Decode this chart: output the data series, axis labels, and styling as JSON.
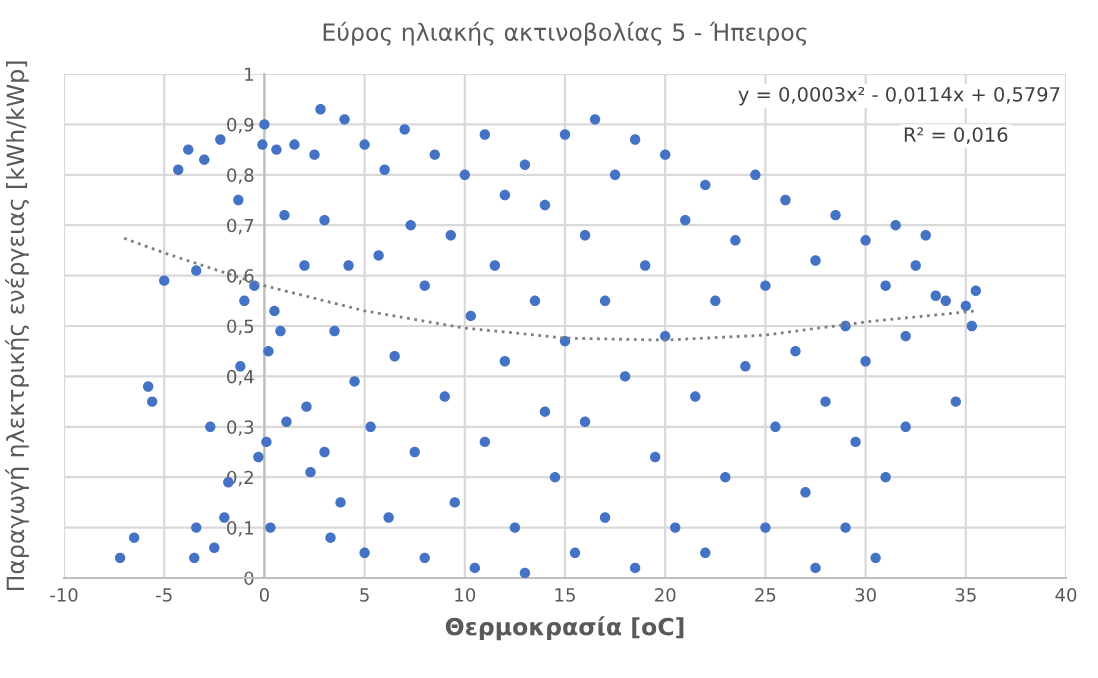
{
  "chart_data": {
    "type": "scatter",
    "title": "Εύρος ηλιακής ακτινοβολίας 5 - Ήπειρος",
    "xlabel": "Θερμοκρασία [oC]",
    "ylabel": "Παραγωγή ηλεκτρικής ενέργειας [kWh/kWp]",
    "annotations": [
      "y = 0,0003x² - 0,0114x + 0,5797",
      "R² = 0,016"
    ],
    "xlim": [
      -10,
      40
    ],
    "xticks": [
      -10,
      -5,
      0,
      5,
      10,
      15,
      20,
      25,
      30,
      35,
      40
    ],
    "ylim": [
      0,
      1
    ],
    "yticks": [
      0,
      {
        "value": 0.1,
        "label": "0,1"
      },
      {
        "value": 0.2,
        "label": "0,2"
      },
      {
        "value": 0.3,
        "label": "0,3"
      },
      {
        "value": 0.4,
        "label": "0,4"
      },
      {
        "value": 0.5,
        "label": "0,5"
      },
      {
        "value": 0.6,
        "label": "0,6"
      },
      {
        "value": 0.7,
        "label": "0,7"
      },
      {
        "value": 0.8,
        "label": "0,8"
      },
      {
        "value": 0.9,
        "label": "0,9"
      },
      1
    ],
    "grid": true,
    "series": [
      {
        "color": "#4472c4",
        "marker": "circle",
        "x": [
          -7.2,
          -6.5,
          -5.8,
          -5.6,
          -5,
          -4.3,
          -3.8,
          -3.5,
          -3.4,
          -3.4,
          -3,
          -2.5,
          -2.2,
          -2,
          -2.7,
          -1.8,
          -1.3,
          -1.2,
          -1,
          -0.1,
          0.1,
          -0.5,
          -0.3,
          0,
          0.2,
          0.3,
          0.5,
          0.6,
          0.8,
          1,
          1.1,
          1.5,
          2,
          2.1,
          2.3,
          2.5,
          2.8,
          3,
          3,
          3.3,
          3.5,
          3.8,
          4,
          4.2,
          4.5,
          5,
          5,
          5.3,
          5.7,
          6,
          6.2,
          6.5,
          7,
          7.3,
          7.5,
          8,
          8,
          8.5,
          9,
          9.3,
          9.5,
          10,
          10.3,
          10.5,
          11,
          11,
          11.5,
          12,
          12,
          12.5,
          13,
          13,
          13.5,
          14,
          14,
          14.5,
          15,
          15,
          15.5,
          16,
          16,
          16.5,
          17,
          17,
          17.5,
          18,
          18.5,
          18.5,
          19,
          19.5,
          20,
          20,
          20.5,
          21,
          21.5,
          22,
          22,
          22.5,
          23,
          23.5,
          24,
          24.5,
          25,
          25,
          25.5,
          26,
          26.5,
          27,
          27.5,
          27.5,
          28,
          28.5,
          29,
          29,
          29.5,
          30,
          30,
          30.5,
          31,
          31,
          31.5,
          32,
          32,
          32.5,
          33,
          33.5,
          34,
          34.5,
          35,
          35.3,
          35.5
        ],
        "values": [
          0.04,
          0.08,
          0.38,
          0.35,
          0.59,
          0.81,
          0.85,
          0.04,
          0.1,
          0.61,
          0.83,
          0.06,
          0.87,
          0.12,
          0.3,
          0.19,
          0.75,
          0.42,
          0.55,
          0.86,
          0.27,
          0.58,
          0.24,
          0.9,
          0.45,
          0.1,
          0.53,
          0.85,
          0.49,
          0.72,
          0.31,
          0.86,
          0.62,
          0.34,
          0.21,
          0.84,
          0.93,
          0.71,
          0.25,
          0.08,
          0.49,
          0.15,
          0.91,
          0.62,
          0.39,
          0.86,
          0.05,
          0.3,
          0.64,
          0.81,
          0.12,
          0.44,
          0.89,
          0.7,
          0.25,
          0.04,
          0.58,
          0.84,
          0.36,
          0.68,
          0.15,
          0.8,
          0.52,
          0.02,
          0.88,
          0.27,
          0.62,
          0.76,
          0.43,
          0.1,
          0.82,
          0.01,
          0.55,
          0.33,
          0.74,
          0.2,
          0.88,
          0.47,
          0.05,
          0.68,
          0.31,
          0.91,
          0.12,
          0.55,
          0.8,
          0.4,
          0.87,
          0.02,
          0.62,
          0.24,
          0.84,
          0.48,
          0.1,
          0.71,
          0.36,
          0.78,
          0.05,
          0.55,
          0.2,
          0.67,
          0.42,
          0.8,
          0.1,
          0.58,
          0.3,
          0.75,
          0.45,
          0.17,
          0.02,
          0.63,
          0.35,
          0.72,
          0.5,
          0.1,
          0.27,
          0.67,
          0.43,
          0.04,
          0.58,
          0.2,
          0.7,
          0.3,
          0.48,
          0.62,
          0.68,
          0.56,
          0.55,
          0.35,
          0.54,
          0.5,
          0.57
        ]
      },
      {
        "type": "line",
        "color": "#7f7f7f",
        "line_style": "dotted",
        "x": [
          -7,
          -5,
          0,
          5,
          10,
          15,
          20,
          25,
          30,
          35.5
        ],
        "values": [
          0.674,
          0.645,
          0.58,
          0.53,
          0.496,
          0.476,
          0.472,
          0.482,
          0.508,
          0.53
        ]
      }
    ]
  }
}
